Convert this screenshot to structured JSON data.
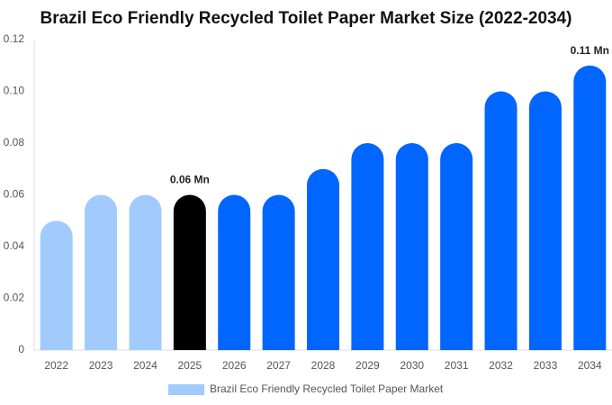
{
  "chart_data": {
    "type": "bar",
    "title": "Brazil Eco Friendly Recycled Toilet Paper Market Size (2022-2034)",
    "categories": [
      "2022",
      "2023",
      "2024",
      "2025",
      "2026",
      "2027",
      "2028",
      "2029",
      "2030",
      "2031",
      "2032",
      "2033",
      "2034"
    ],
    "series": [
      {
        "name": "Brazil Eco Friendly Recycled Toilet Paper Market",
        "color": "#a0cbfc",
        "values": [
          0.05,
          0.06,
          0.06,
          0.06,
          0.06,
          0.06,
          0.07,
          0.08,
          0.08,
          0.08,
          0.1,
          0.1,
          0.11
        ],
        "colors": [
          "#a0cbfc",
          "#a0cbfc",
          "#a0cbfc",
          "#000000",
          "#0066ff",
          "#0066ff",
          "#0066ff",
          "#0066ff",
          "#0066ff",
          "#0066ff",
          "#0066ff",
          "#0066ff",
          "#0066ff"
        ],
        "value_labels": [
          null,
          null,
          null,
          "0.06 Mn",
          null,
          null,
          null,
          null,
          null,
          null,
          null,
          null,
          "0.11 Mn"
        ]
      }
    ],
    "ylim": [
      0,
      0.12
    ],
    "yticks": [
      0,
      0.02,
      0.04,
      0.06,
      0.08,
      {
        "value": 0.1,
        "label": "0.10"
      },
      0.12
    ],
    "grid": false,
    "legend": "bottom"
  }
}
